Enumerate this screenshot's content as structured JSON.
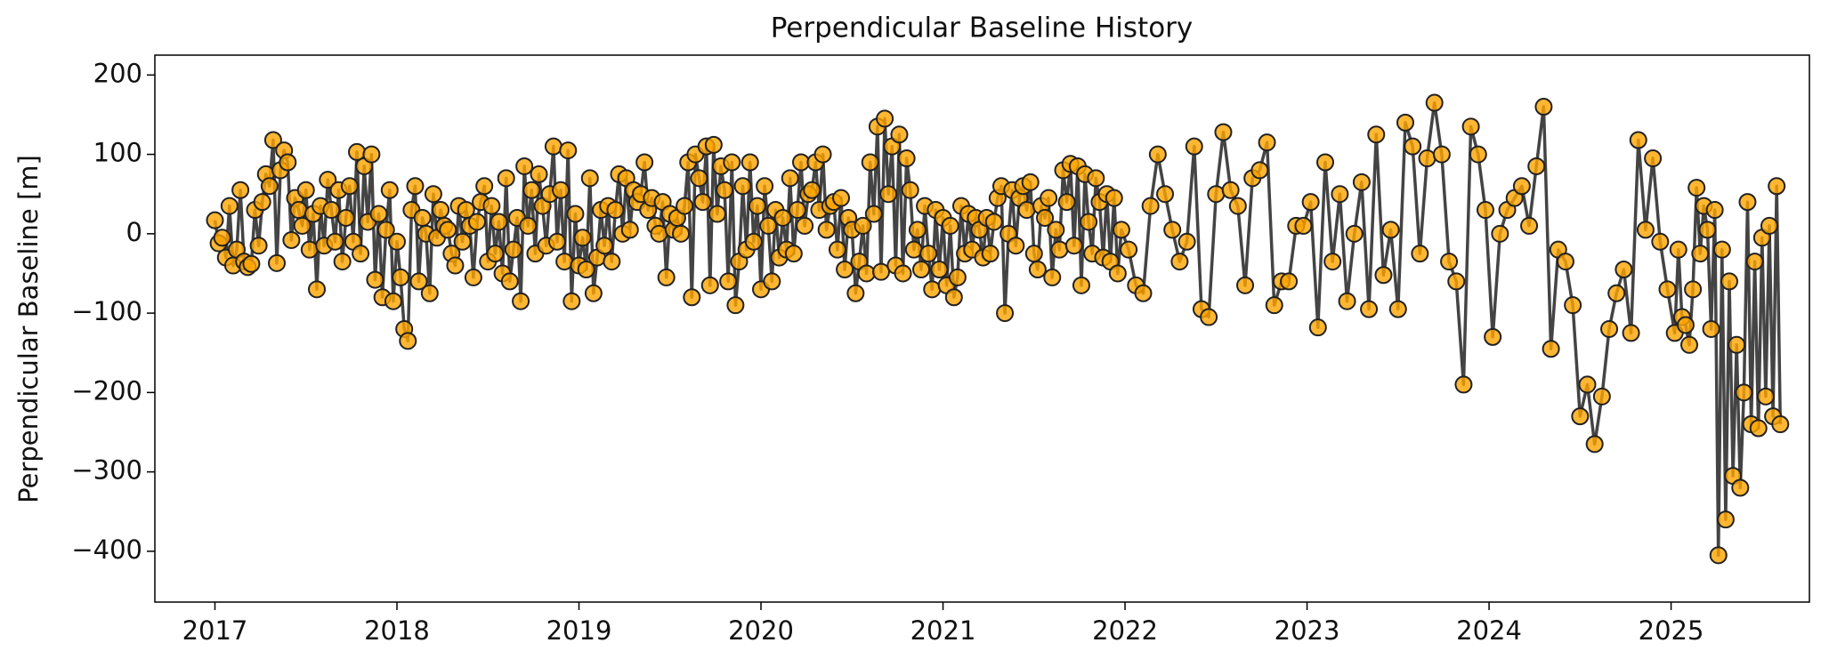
{
  "chart_data": {
    "type": "line",
    "title": "Perpendicular Baseline History",
    "ylabel": "Perpendicular Baseline [m]",
    "xlim": [
      2016.67,
      2025.76
    ],
    "xticks": [
      2017,
      2018,
      2019,
      2020,
      2021,
      2022,
      2023,
      2024,
      2025
    ],
    "ylim": [
      -464,
      225
    ],
    "yticks": [
      {
        "value": 200,
        "label": "200"
      },
      {
        "value": 100,
        "label": "100"
      },
      {
        "value": 0,
        "label": "0"
      },
      {
        "value": -100,
        "label": "−100"
      },
      {
        "value": -200,
        "label": "−200"
      },
      {
        "value": -300,
        "label": "−300"
      },
      {
        "value": -400,
        "label": "−400"
      }
    ],
    "grid": false,
    "line_color": "#444444",
    "marker_color": "#ffa500",
    "marker_edge": "#222222",
    "x": [
      2017.0,
      2017.02,
      2017.04,
      2017.06,
      2017.08,
      2017.1,
      2017.12,
      2017.14,
      2017.16,
      2017.18,
      2017.2,
      2017.22,
      2017.24,
      2017.26,
      2017.28,
      2017.3,
      2017.32,
      2017.34,
      2017.36,
      2017.38,
      2017.4,
      2017.42,
      2017.44,
      2017.46,
      2017.48,
      2017.5,
      2017.52,
      2017.54,
      2017.56,
      2017.58,
      2017.6,
      2017.62,
      2017.64,
      2017.66,
      2017.68,
      2017.7,
      2017.72,
      2017.74,
      2017.76,
      2017.78,
      2017.8,
      2017.82,
      2017.84,
      2017.86,
      2017.88,
      2017.9,
      2017.92,
      2017.94,
      2017.96,
      2017.98,
      2018.0,
      2018.02,
      2018.04,
      2018.06,
      2018.08,
      2018.1,
      2018.12,
      2018.14,
      2018.16,
      2018.18,
      2018.2,
      2018.22,
      2018.24,
      2018.26,
      2018.28,
      2018.3,
      2018.32,
      2018.34,
      2018.36,
      2018.38,
      2018.4,
      2018.42,
      2018.44,
      2018.46,
      2018.48,
      2018.5,
      2018.52,
      2018.54,
      2018.56,
      2018.58,
      2018.6,
      2018.62,
      2018.64,
      2018.66,
      2018.68,
      2018.7,
      2018.72,
      2018.74,
      2018.76,
      2018.78,
      2018.8,
      2018.82,
      2018.84,
      2018.86,
      2018.88,
      2018.9,
      2018.92,
      2018.94,
      2018.96,
      2018.98,
      2019.0,
      2019.02,
      2019.04,
      2019.06,
      2019.08,
      2019.1,
      2019.12,
      2019.14,
      2019.16,
      2019.18,
      2019.2,
      2019.22,
      2019.24,
      2019.26,
      2019.28,
      2019.3,
      2019.32,
      2019.34,
      2019.36,
      2019.38,
      2019.4,
      2019.42,
      2019.44,
      2019.46,
      2019.48,
      2019.5,
      2019.52,
      2019.54,
      2019.56,
      2019.58,
      2019.6,
      2019.62,
      2019.64,
      2019.66,
      2019.68,
      2019.7,
      2019.72,
      2019.74,
      2019.76,
      2019.78,
      2019.8,
      2019.82,
      2019.84,
      2019.86,
      2019.88,
      2019.9,
      2019.92,
      2019.94,
      2019.96,
      2019.98,
      2020.0,
      2020.02,
      2020.04,
      2020.06,
      2020.08,
      2020.1,
      2020.12,
      2020.14,
      2020.16,
      2020.18,
      2020.2,
      2020.22,
      2020.24,
      2020.26,
      2020.28,
      2020.3,
      2020.32,
      2020.34,
      2020.36,
      2020.38,
      2020.4,
      2020.42,
      2020.44,
      2020.46,
      2020.48,
      2020.5,
      2020.52,
      2020.54,
      2020.56,
      2020.58,
      2020.6,
      2020.62,
      2020.64,
      2020.66,
      2020.68,
      2020.7,
      2020.72,
      2020.74,
      2020.76,
      2020.78,
      2020.8,
      2020.82,
      2020.84,
      2020.86,
      2020.88,
      2020.9,
      2020.92,
      2020.94,
      2020.96,
      2020.98,
      2021.0,
      2021.02,
      2021.04,
      2021.06,
      2021.08,
      2021.1,
      2021.12,
      2021.14,
      2021.16,
      2021.18,
      2021.2,
      2021.22,
      2021.24,
      2021.26,
      2021.28,
      2021.3,
      2021.32,
      2021.34,
      2021.36,
      2021.38,
      2021.4,
      2021.42,
      2021.44,
      2021.46,
      2021.48,
      2021.5,
      2021.52,
      2021.54,
      2021.56,
      2021.58,
      2021.6,
      2021.62,
      2021.64,
      2021.66,
      2021.68,
      2021.7,
      2021.72,
      2021.74,
      2021.76,
      2021.78,
      2021.8,
      2021.82,
      2021.84,
      2021.86,
      2021.88,
      2021.9,
      2021.92,
      2021.94,
      2021.96,
      2021.98,
      2022.02,
      2022.06,
      2022.1,
      2022.14,
      2022.18,
      2022.22,
      2022.26,
      2022.3,
      2022.34,
      2022.38,
      2022.42,
      2022.46,
      2022.5,
      2022.54,
      2022.58,
      2022.62,
      2022.66,
      2022.7,
      2022.74,
      2022.78,
      2022.82,
      2022.86,
      2022.9,
      2022.94,
      2022.98,
      2023.02,
      2023.06,
      2023.1,
      2023.14,
      2023.18,
      2023.22,
      2023.26,
      2023.3,
      2023.34,
      2023.38,
      2023.42,
      2023.46,
      2023.5,
      2023.54,
      2023.58,
      2023.62,
      2023.66,
      2023.7,
      2023.74,
      2023.78,
      2023.82,
      2023.86,
      2023.9,
      2023.94,
      2023.98,
      2024.02,
      2024.06,
      2024.1,
      2024.14,
      2024.18,
      2024.22,
      2024.26,
      2024.3,
      2024.34,
      2024.38,
      2024.42,
      2024.46,
      2024.5,
      2024.54,
      2024.58,
      2024.62,
      2024.66,
      2024.7,
      2024.74,
      2024.78,
      2024.82,
      2024.86,
      2024.9,
      2024.94,
      2024.98,
      2025.02,
      2025.04,
      2025.06,
      2025.08,
      2025.1,
      2025.12,
      2025.14,
      2025.16,
      2025.18,
      2025.2,
      2025.22,
      2025.24,
      2025.26,
      2025.28,
      2025.3,
      2025.32,
      2025.34,
      2025.36,
      2025.38,
      2025.4,
      2025.42,
      2025.44,
      2025.46,
      2025.48,
      2025.5,
      2025.52,
      2025.54,
      2025.56,
      2025.58,
      2025.6
    ],
    "values": [
      17,
      -12,
      -5,
      -30,
      35,
      -40,
      -20,
      55,
      -35,
      -42,
      -38,
      30,
      -15,
      40,
      75,
      60,
      118,
      -37,
      80,
      105,
      90,
      -8,
      45,
      30,
      10,
      55,
      -20,
      25,
      -70,
      35,
      -15,
      68,
      30,
      -10,
      55,
      -35,
      20,
      60,
      -10,
      103,
      -25,
      85,
      15,
      100,
      -58,
      25,
      -80,
      5,
      55,
      -85,
      -10,
      -55,
      -120,
      -135,
      30,
      60,
      -60,
      20,
      0,
      -75,
      50,
      -5,
      30,
      10,
      5,
      -25,
      -40,
      35,
      -10,
      30,
      10,
      -55,
      15,
      40,
      60,
      -35,
      35,
      -25,
      15,
      -50,
      70,
      -60,
      -20,
      20,
      -85,
      85,
      10,
      55,
      -25,
      75,
      35,
      -15,
      50,
      110,
      -10,
      55,
      -35,
      105,
      -85,
      25,
      -40,
      -5,
      -45,
      70,
      -75,
      -30,
      30,
      -15,
      35,
      -35,
      30,
      75,
      0,
      70,
      5,
      55,
      40,
      50,
      90,
      30,
      45,
      10,
      0,
      40,
      -55,
      25,
      5,
      20,
      0,
      35,
      90,
      -80,
      100,
      70,
      40,
      110,
      -65,
      112,
      25,
      85,
      55,
      -60,
      90,
      -90,
      -35,
      60,
      -20,
      90,
      -10,
      35,
      -70,
      60,
      10,
      -60,
      30,
      -30,
      20,
      -20,
      70,
      -25,
      30,
      90,
      10,
      50,
      55,
      90,
      30,
      100,
      5,
      35,
      40,
      -20,
      45,
      -45,
      20,
      5,
      -75,
      -35,
      10,
      -50,
      90,
      25,
      135,
      -48,
      145,
      50,
      110,
      -40,
      125,
      -50,
      95,
      55,
      -20,
      5,
      -45,
      35,
      -25,
      -70,
      30,
      -45,
      20,
      -65,
      10,
      -80,
      -55,
      35,
      -25,
      25,
      -20,
      20,
      5,
      -30,
      20,
      -25,
      15,
      45,
      60,
      -100,
      0,
      55,
      -15,
      45,
      60,
      30,
      65,
      -25,
      -45,
      35,
      20,
      45,
      -55,
      5,
      -20,
      80,
      40,
      88,
      -15,
      85,
      -65,
      75,
      15,
      -25,
      70,
      40,
      -30,
      50,
      -35,
      45,
      -50,
      5,
      -20,
      -65,
      -75,
      35,
      100,
      50,
      5,
      -35,
      -10,
      110,
      -95,
      -105,
      50,
      128,
      55,
      35,
      -65,
      70,
      80,
      115,
      -90,
      -60,
      -60,
      10,
      10,
      40,
      -118,
      90,
      -35,
      50,
      -85,
      0,
      65,
      -95,
      125,
      -52,
      5,
      -95,
      140,
      110,
      -25,
      95,
      165,
      100,
      -35,
      -60,
      -190,
      135,
      100,
      30,
      -130,
      0,
      30,
      45,
      60,
      10,
      85,
      160,
      -145,
      -20,
      -35,
      -90,
      -230,
      -190,
      -265,
      -205,
      -120,
      -75,
      -45,
      -125,
      118,
      5,
      95,
      -10,
      -70,
      -125,
      -20,
      -105,
      -115,
      -140,
      -70,
      58,
      -25,
      35,
      5,
      -120,
      30,
      -405,
      -20,
      -360,
      -60,
      -305,
      -140,
      -320,
      -200,
      40,
      -240,
      -35,
      -245,
      -5,
      -205,
      10,
      -230,
      60,
      -240
    ]
  }
}
